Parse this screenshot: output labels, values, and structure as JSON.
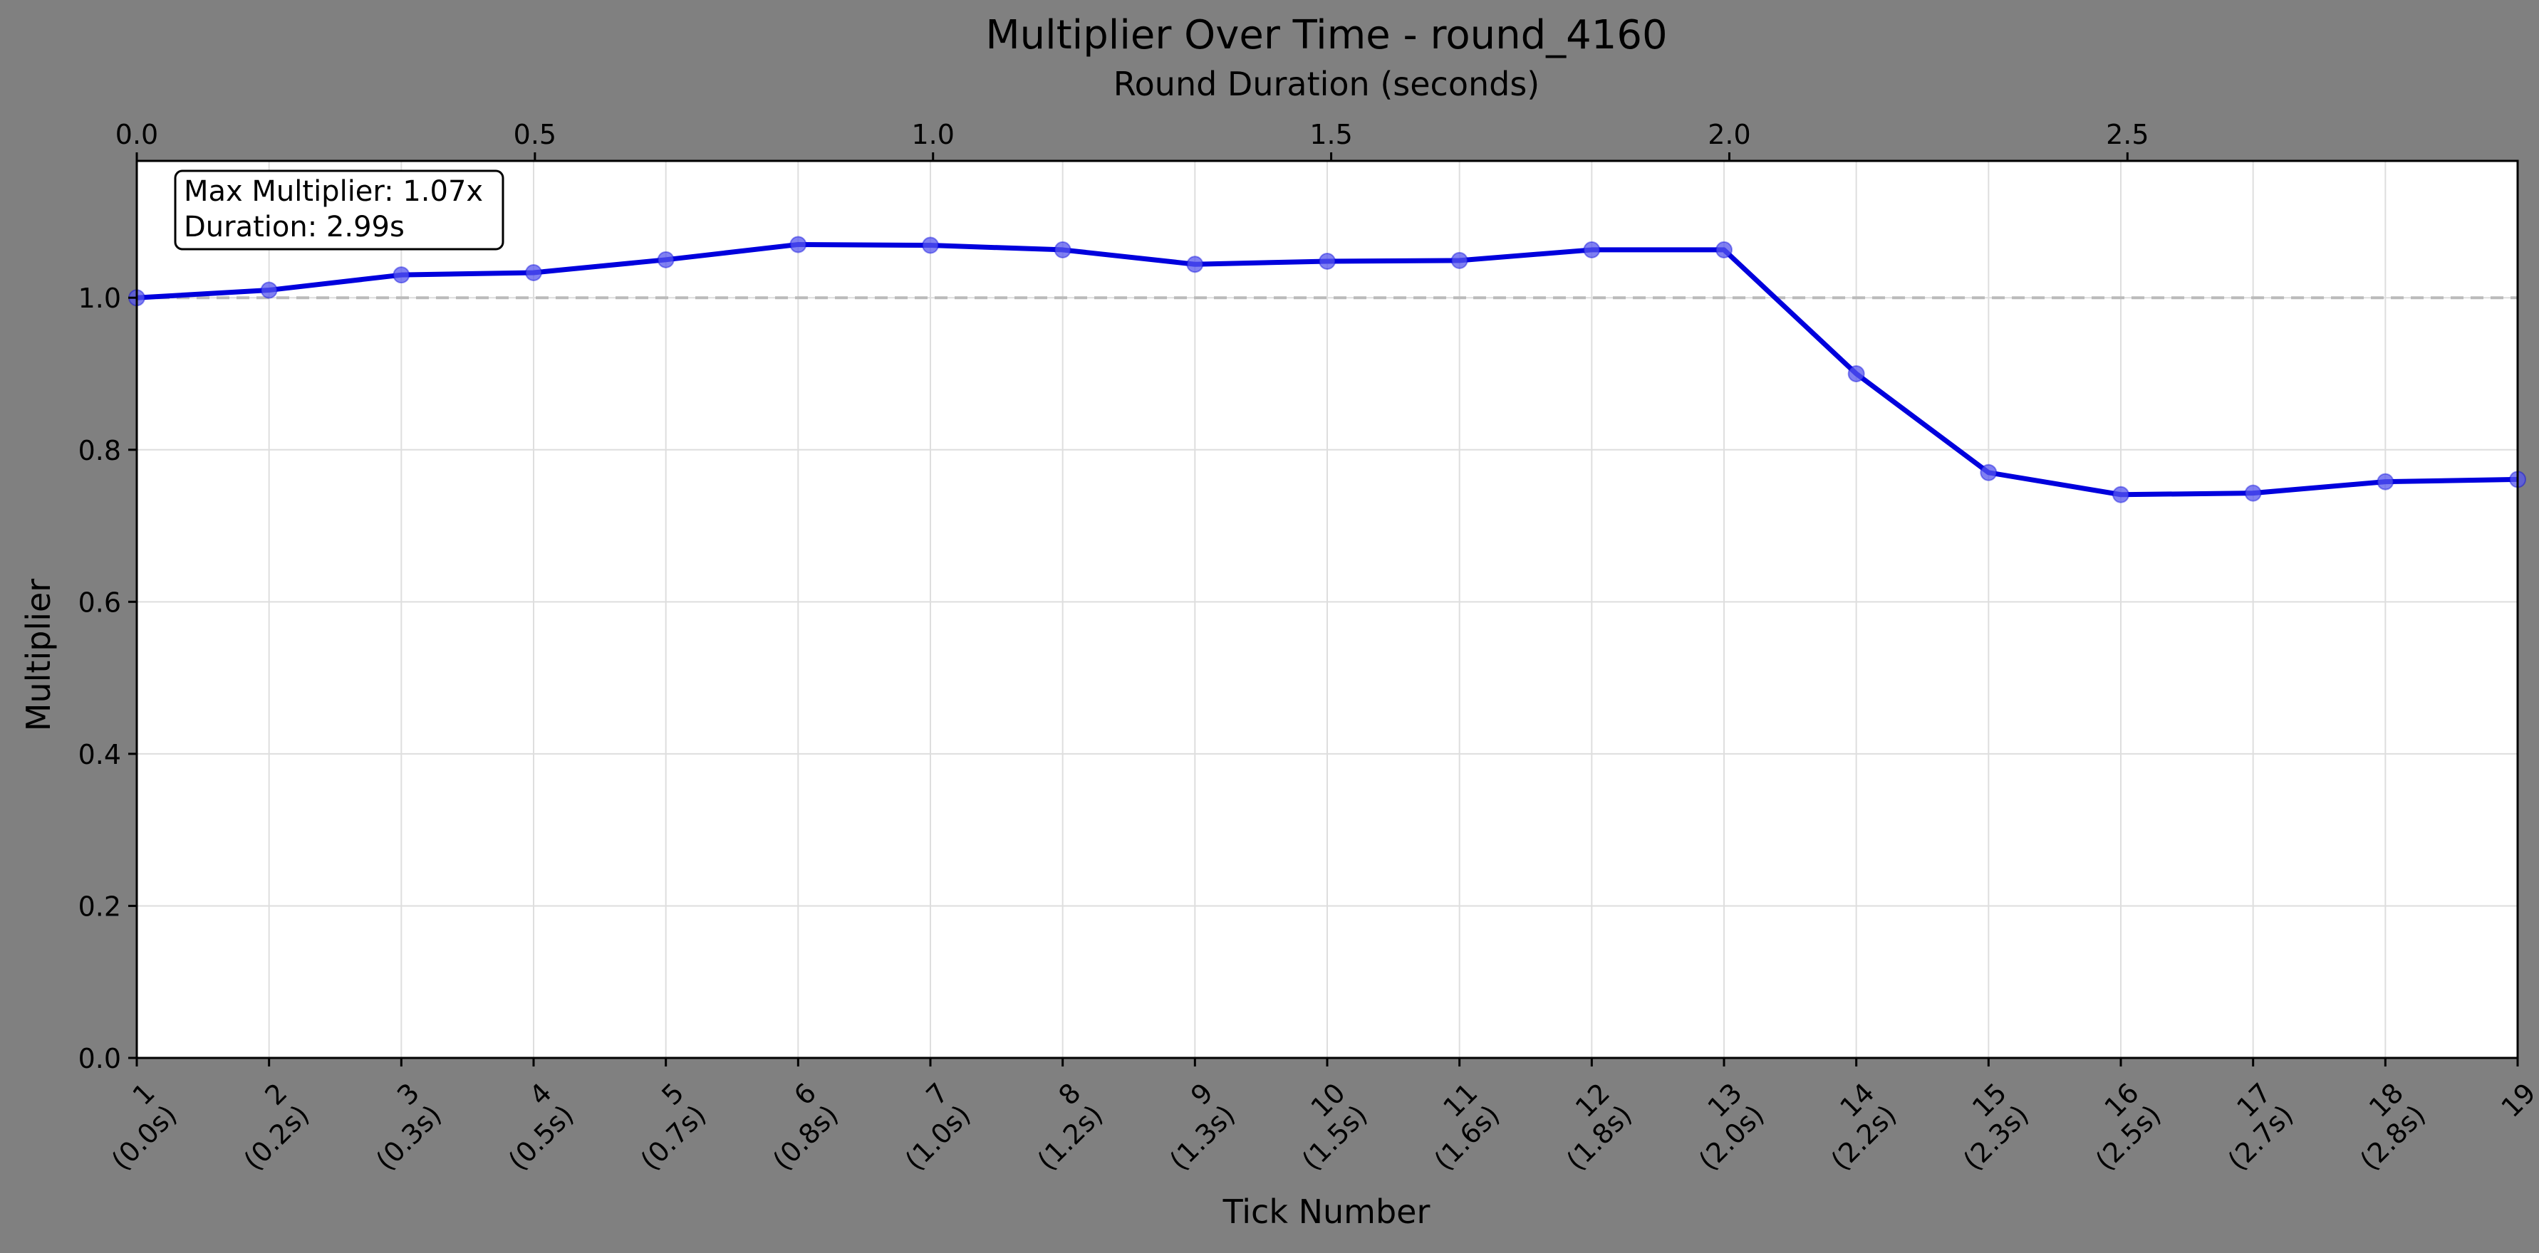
{
  "chart_data": {
    "type": "line",
    "title": "Multiplier Over Time - round_4160",
    "xlabel": "Tick Number",
    "ylabel": "Multiplier",
    "x2label": "Round Duration (seconds)",
    "x": [
      1,
      2,
      3,
      4,
      5,
      6,
      7,
      8,
      9,
      10,
      11,
      12,
      13,
      14,
      15,
      16,
      17,
      18,
      19
    ],
    "x_tick_labels": [
      [
        "1",
        "(0.0s)"
      ],
      [
        "2",
        "(0.2s)"
      ],
      [
        "3",
        "(0.3s)"
      ],
      [
        "4",
        "(0.5s)"
      ],
      [
        "5",
        "(0.7s)"
      ],
      [
        "6",
        "(0.8s)"
      ],
      [
        "7",
        "(1.0s)"
      ],
      [
        "8",
        "(1.2s)"
      ],
      [
        "9",
        "(1.3s)"
      ],
      [
        "10",
        "(1.5s)"
      ],
      [
        "11",
        "(1.6s)"
      ],
      [
        "12",
        "(1.8s)"
      ],
      [
        "13",
        "(2.0s)"
      ],
      [
        "14",
        "(2.2s)"
      ],
      [
        "15",
        "(2.3s)"
      ],
      [
        "16",
        "(2.5s)"
      ],
      [
        "17",
        "(2.7s)"
      ],
      [
        "18",
        "(2.8s)"
      ],
      [
        "19",
        ""
      ]
    ],
    "series": [
      {
        "values": [
          1.0,
          1.01,
          1.03,
          1.033,
          1.05,
          1.07,
          1.069,
          1.063,
          1.044,
          1.048,
          1.049,
          1.063,
          1.063,
          0.9,
          0.77,
          0.741,
          0.743,
          0.758,
          0.761
        ]
      }
    ],
    "xlim": [
      1,
      19
    ],
    "ylim": [
      0,
      1.18
    ],
    "y_ticks": [
      0.0,
      0.2,
      0.4,
      0.6,
      0.8,
      1.0
    ],
    "y_tick_labels": [
      "0.0",
      "0.2",
      "0.4",
      "0.6",
      "0.8",
      "1.0"
    ],
    "x2_range_seconds": [
      0,
      2.99
    ],
    "x2_ticks": [
      0.0,
      0.5,
      1.0,
      1.5,
      2.0,
      2.5
    ],
    "x2_tick_labels": [
      "0.0",
      "0.5",
      "1.0",
      "1.5",
      "2.0",
      "2.5"
    ],
    "reference_line_y": 1.0,
    "grid": true,
    "line_color": "#0000dd",
    "marker_color": "#5555ee",
    "reference_color": "#bbbbbb",
    "annotation_lines": [
      "Max Multiplier: 1.07x",
      "Duration: 2.99s"
    ]
  }
}
